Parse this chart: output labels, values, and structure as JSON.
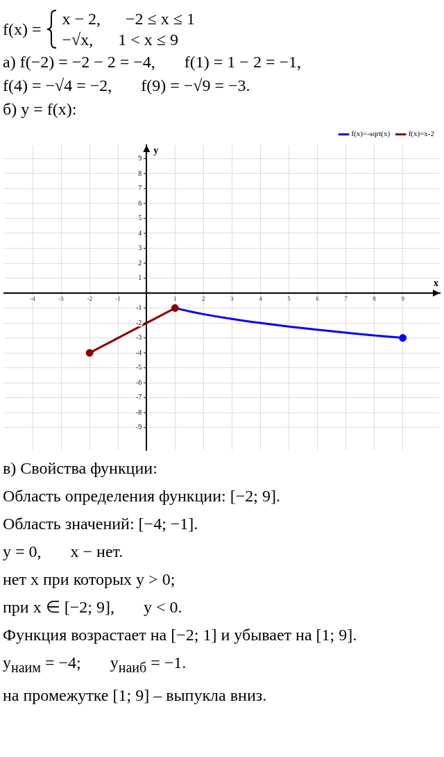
{
  "chart_data": {
    "type": "line",
    "xlabel": "x",
    "ylabel": "y",
    "xlim": [
      -5,
      10.3
    ],
    "ylim": [
      -10.5,
      9.9
    ],
    "xticks": [
      -4,
      -3,
      -2,
      -1,
      1,
      2,
      3,
      4,
      5,
      6,
      7,
      8,
      9
    ],
    "yticks": [
      -9,
      -8,
      -7,
      -6,
      -5,
      -4,
      -3,
      -2,
      -1,
      1,
      2,
      3,
      4,
      5,
      6,
      7,
      8,
      9
    ],
    "grid": true,
    "legend": "top right",
    "marker": "none",
    "line_style": "solid",
    "series": [
      {
        "name": "f(x)=-sqrt(x)",
        "color": "#0000ff",
        "x": [
          1,
          1.5,
          2,
          3,
          4,
          5,
          6,
          7,
          8,
          9
        ],
        "values": [
          -1,
          -1.22,
          -1.41,
          -1.73,
          -2,
          -2.24,
          -2.45,
          -2.65,
          -2.83,
          -3
        ]
      },
      {
        "name": "f(x)=x-2",
        "color": "#8b0000",
        "x": [
          -2,
          1
        ],
        "values": [
          -4,
          -1
        ]
      },
      {
        "type": "scatter",
        "marker": "circle",
        "color": "#8b0000",
        "x": [
          -2,
          1
        ],
        "values": [
          -4,
          -1
        ]
      },
      {
        "type": "scatter",
        "marker": "circle",
        "color": "#0000ff",
        "x": [
          9
        ],
        "values": [
          -3
        ]
      }
    ],
    "annotations": [
      "f(x) =",
      "x − 2,      −2 ≤ x ≤ 1",
      "−√x,      1 < x ≤ 9",
      "а) f(−2) = −2 − 2 = −4,       f(1) = 1 − 2 = −1,",
      "f(4) = −√4 = −2,       f(9) = −√9 = −3.",
      "б) y = f(x):",
      "в) Свойства функции:",
      "Область определения функции: [−2; 9].",
      "Область значений: [−4; −1].",
      "y = 0,       x − нет.",
      "нет x при которых y > 0;",
      "при x ∈ [−2; 9],       y < 0.",
      "Функция возрастает на [−2; 1] и убывает на [1; 9].",
      "y$_{наим}$ = −4;       y$_{наиб}$ = −1.",
      "на промежутке [1; 9] – выпукла вниз."
    ]
  }
}
